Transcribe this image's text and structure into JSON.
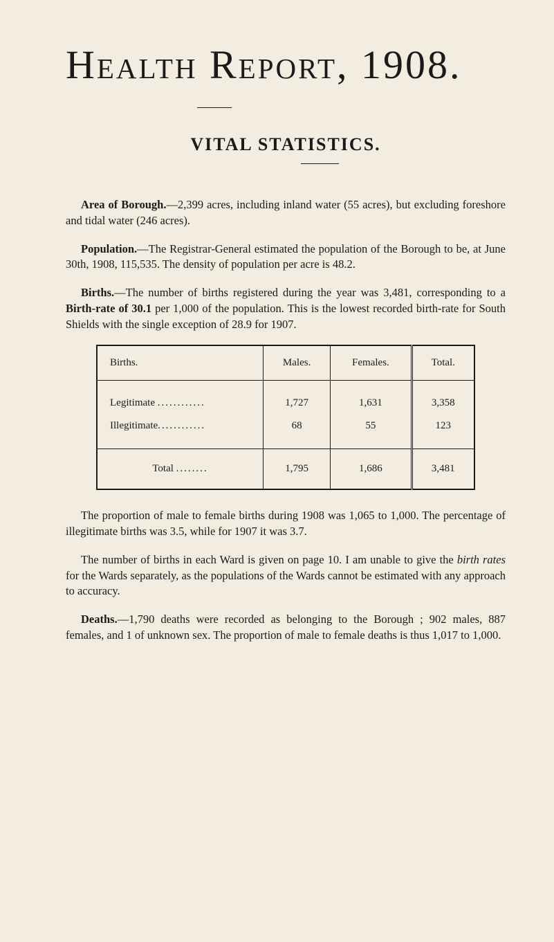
{
  "page": {
    "background_color": "#f2ede0",
    "text_color": "#1a1a1a"
  },
  "title": "Health Report, 1908.",
  "subtitle": "VITAL STATISTICS.",
  "paragraphs": {
    "area": {
      "lead": "Area of Borough.",
      "text": "—2,399 acres, including inland water (55 acres), but excluding foreshore and tidal water (246 acres)."
    },
    "population": {
      "lead": "Population.",
      "text": "—The Registrar-General estimated the population of the Borough to be, at June 30th, 1908, 115,535. The density of population per acre is 48.2."
    },
    "births": {
      "lead": "Births.",
      "text_a": "—The number of births registered during the year was 3,481, corresponding to a ",
      "bold_mid": "Birth-rate of 30.1",
      "text_b": " per 1,000 of the population. This is the lowest recorded birth-rate for South Shields with the single exception of 28.9 for 1907."
    },
    "proportion": {
      "text": "The proportion of male to female births during 1908 was 1,065 to 1,000. The percentage of illegitimate births was 3.5, while for 1907 it was 3.7."
    },
    "wards": {
      "text_a": "The number of births in each Ward is given on page 10. I am unable to give the ",
      "italic": "birth rates",
      "text_b": " for the Wards separately, as the populations of the Wards cannot be estimated with any approach to accuracy."
    },
    "deaths": {
      "lead": "Deaths.",
      "text": "—1,790 deaths were recorded as belonging to the Borough ; 902 males, 887 females, and 1 of unknown sex. The proportion of male to female deaths is thus 1,017 to 1,000."
    }
  },
  "table": {
    "type": "table",
    "columns": [
      "Births.",
      "Males.",
      "Females.",
      "Total."
    ],
    "rows": [
      {
        "label": "Legitimate",
        "males": "1,727",
        "females": "1,631",
        "total": "3,358"
      },
      {
        "label": "Illegitimate",
        "males": "68",
        "females": "55",
        "total": "123"
      }
    ],
    "footer": {
      "label": "Total",
      "males": "1,795",
      "females": "1,686",
      "total": "3,481"
    },
    "border_color": "#1a1a1a",
    "font_size_pt": 11
  }
}
